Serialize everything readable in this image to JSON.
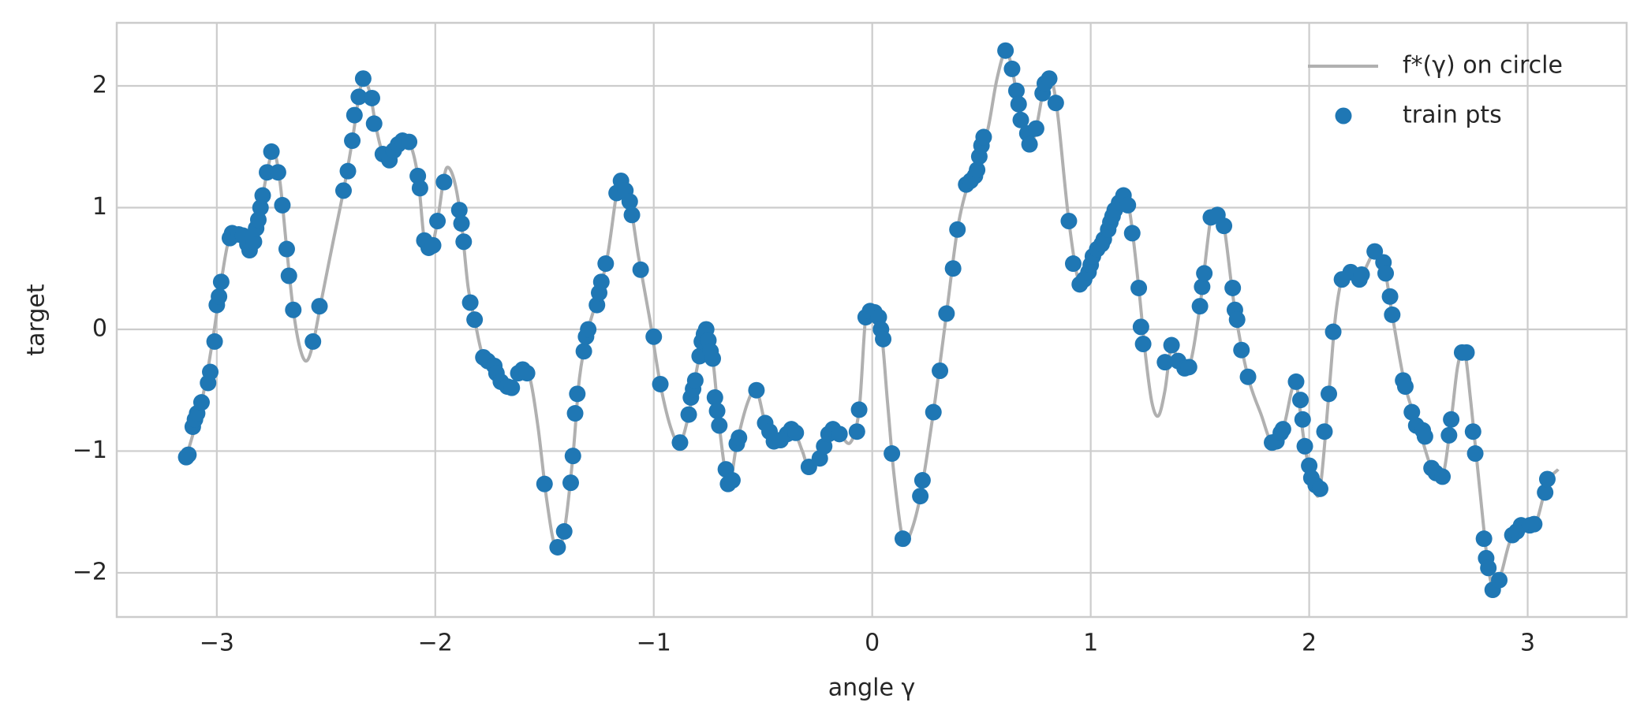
{
  "chart_data": {
    "type": "line",
    "xlabel": "angle γ",
    "ylabel": "target",
    "xlim": [
      -3.458,
      3.453
    ],
    "ylim": [
      -2.363,
      2.518
    ],
    "xticks": [
      {
        "value": -3,
        "label": "−3"
      },
      {
        "value": -2,
        "label": "−2"
      },
      {
        "value": -1,
        "label": "−1"
      },
      0,
      1,
      2,
      3
    ],
    "yticks": [
      {
        "value": -2,
        "label": "−2"
      },
      {
        "value": -1,
        "label": "−1"
      },
      0,
      1,
      2
    ],
    "grid": true,
    "legend": "upper right",
    "series": [
      {
        "name": "f*(γ) on circle",
        "type": "line",
        "color": "#b0b0b0",
        "x": [
          -3.14,
          -3.07,
          -3.02,
          -2.98,
          -2.95,
          -2.92,
          -2.89,
          -2.85,
          -2.81,
          -2.77,
          -2.74,
          -2.71,
          -2.68,
          -2.65,
          -2.62,
          -2.59,
          -2.56,
          -2.52,
          -2.47,
          -2.42,
          -2.38,
          -2.35,
          -2.33,
          -2.3,
          -2.27,
          -2.24,
          -2.21,
          -2.16,
          -2.12,
          -2.08,
          -2.05,
          -2.02,
          -1.99,
          -1.96,
          -1.94,
          -1.91,
          -1.88,
          -1.85,
          -1.82,
          -1.78,
          -1.72,
          -1.66,
          -1.61,
          -1.57,
          -1.53,
          -1.49,
          -1.45,
          -1.41,
          -1.37,
          -1.34,
          -1.3,
          -1.25,
          -1.21,
          -1.17,
          -1.15,
          -1.11,
          -1.07,
          -1.02,
          -0.97,
          -0.92,
          -0.88,
          -0.84,
          -0.8,
          -0.76,
          -0.73,
          -0.7,
          -0.67,
          -0.65,
          -0.62,
          -0.57,
          -0.53,
          -0.49,
          -0.45,
          -0.4,
          -0.36,
          -0.32,
          -0.29,
          -0.24,
          -0.19,
          -0.15,
          -0.1,
          -0.06,
          -0.03,
          0.0,
          0.04,
          0.07,
          0.1,
          0.14,
          0.17,
          0.22,
          0.28,
          0.34,
          0.39,
          0.44,
          0.49,
          0.53,
          0.57,
          0.61,
          0.64,
          0.67,
          0.72,
          0.75,
          0.79,
          0.82,
          0.85,
          0.9,
          0.95,
          1.0,
          1.06,
          1.11,
          1.15,
          1.18,
          1.22,
          1.25,
          1.28,
          1.31,
          1.34,
          1.37,
          1.4,
          1.45,
          1.5,
          1.55,
          1.58,
          1.61,
          1.66,
          1.72,
          1.78,
          1.83,
          1.88,
          1.92,
          1.94,
          1.98,
          2.02,
          2.05,
          2.09,
          2.12,
          2.15,
          2.19,
          2.24,
          2.3,
          2.34,
          2.38,
          2.44,
          2.5,
          2.56,
          2.61,
          2.65,
          2.68,
          2.71,
          2.74,
          2.78,
          2.82,
          2.85,
          2.88,
          2.93,
          3.0,
          3.04,
          3.09,
          3.14
        ],
        "values": [
          -1.05,
          -0.6,
          -0.1,
          0.39,
          0.7,
          0.8,
          0.77,
          0.65,
          0.9,
          1.29,
          1.47,
          1.2,
          0.66,
          0.16,
          -0.15,
          -0.26,
          -0.12,
          0.25,
          0.7,
          1.14,
          1.55,
          1.91,
          2.05,
          1.95,
          1.65,
          1.44,
          1.39,
          1.53,
          1.54,
          1.26,
          0.73,
          0.66,
          0.89,
          1.25,
          1.33,
          1.2,
          0.87,
          0.35,
          0.08,
          -0.23,
          -0.36,
          -0.48,
          -0.33,
          -0.38,
          -0.8,
          -1.4,
          -1.79,
          -1.66,
          -1.04,
          -0.4,
          0.0,
          0.3,
          0.62,
          1.12,
          1.22,
          1.05,
          0.6,
          0.1,
          -0.45,
          -0.82,
          -0.93,
          -0.7,
          -0.3,
          0.0,
          -0.24,
          -0.79,
          -1.2,
          -1.28,
          -0.94,
          -0.6,
          -0.5,
          -0.77,
          -0.92,
          -0.87,
          -0.83,
          -1.0,
          -1.13,
          -1.06,
          -0.83,
          -0.86,
          -0.93,
          -0.66,
          0.1,
          0.17,
          0.0,
          -0.6,
          -1.2,
          -1.73,
          -1.7,
          -1.37,
          -0.68,
          0.13,
          0.82,
          1.2,
          1.42,
          1.65,
          2.05,
          2.29,
          2.14,
          1.85,
          1.52,
          1.65,
          2.02,
          2.05,
          1.75,
          0.89,
          0.37,
          0.53,
          0.74,
          0.98,
          1.1,
          0.95,
          0.34,
          -0.2,
          -0.6,
          -0.71,
          -0.5,
          -0.13,
          -0.26,
          -0.31,
          0.19,
          0.92,
          0.95,
          0.85,
          0.16,
          -0.39,
          -0.7,
          -0.93,
          -0.82,
          -0.5,
          -0.43,
          -0.96,
          -1.28,
          -1.31,
          -0.53,
          0.1,
          0.41,
          0.47,
          0.45,
          0.64,
          0.55,
          0.12,
          -0.47,
          -0.8,
          -1.14,
          -1.21,
          -0.74,
          -0.3,
          -0.17,
          -0.6,
          -1.3,
          -1.96,
          -2.14,
          -2.0,
          -1.69,
          -1.61,
          -1.58,
          -1.26,
          -1.15
        ]
      },
      {
        "name": "train pts",
        "type": "scatter",
        "color": "#1f77b4",
        "x": [
          -3.14,
          -3.13,
          -3.11,
          -3.1,
          -3.09,
          -3.07,
          -3.04,
          -3.03,
          -3.01,
          -3.0,
          -2.99,
          -2.98,
          -2.94,
          -2.93,
          -2.9,
          -2.88,
          -2.86,
          -2.85,
          -2.83,
          -2.82,
          -2.81,
          -2.8,
          -2.79,
          -2.77,
          -2.75,
          -2.72,
          -2.7,
          -2.68,
          -2.67,
          -2.65,
          -2.56,
          -2.53,
          -2.42,
          -2.4,
          -2.38,
          -2.37,
          -2.35,
          -2.33,
          -2.29,
          -2.28,
          -2.24,
          -2.21,
          -2.19,
          -2.17,
          -2.15,
          -2.12,
          -2.08,
          -2.07,
          -2.05,
          -2.03,
          -2.01,
          -1.99,
          -1.96,
          -1.89,
          -1.88,
          -1.87,
          -1.84,
          -1.82,
          -1.78,
          -1.76,
          -1.73,
          -1.72,
          -1.7,
          -1.67,
          -1.65,
          -1.62,
          -1.6,
          -1.58,
          -1.5,
          -1.44,
          -1.41,
          -1.38,
          -1.37,
          -1.36,
          -1.35,
          -1.32,
          -1.31,
          -1.3,
          -1.26,
          -1.25,
          -1.24,
          -1.22,
          -1.17,
          -1.15,
          -1.13,
          -1.11,
          -1.1,
          -1.06,
          -1.0,
          -0.97,
          -0.88,
          -0.84,
          -0.83,
          -0.82,
          -0.81,
          -0.79,
          -0.78,
          -0.77,
          -0.76,
          -0.75,
          -0.74,
          -0.73,
          -0.72,
          -0.71,
          -0.7,
          -0.67,
          -0.66,
          -0.64,
          -0.62,
          -0.61,
          -0.53,
          -0.49,
          -0.47,
          -0.45,
          -0.42,
          -0.39,
          -0.37,
          -0.35,
          -0.29,
          -0.24,
          -0.22,
          -0.2,
          -0.18,
          -0.15,
          -0.07,
          -0.06,
          -0.03,
          -0.01,
          0.01,
          0.03,
          0.04,
          0.05,
          0.09,
          0.14,
          0.22,
          0.23,
          0.28,
          0.31,
          0.34,
          0.37,
          0.39,
          0.43,
          0.45,
          0.47,
          0.48,
          0.49,
          0.5,
          0.51,
          0.61,
          0.64,
          0.66,
          0.67,
          0.68,
          0.71,
          0.72,
          0.75,
          0.78,
          0.79,
          0.81,
          0.84,
          0.9,
          0.92,
          0.95,
          0.97,
          0.99,
          1.0,
          1.01,
          1.03,
          1.05,
          1.06,
          1.08,
          1.09,
          1.1,
          1.11,
          1.13,
          1.15,
          1.17,
          1.19,
          1.22,
          1.23,
          1.24,
          1.34,
          1.37,
          1.4,
          1.43,
          1.45,
          1.5,
          1.51,
          1.52,
          1.55,
          1.58,
          1.61,
          1.65,
          1.66,
          1.67,
          1.69,
          1.72,
          1.83,
          1.85,
          1.87,
          1.88,
          1.94,
          1.96,
          1.97,
          1.98,
          2.0,
          2.01,
          2.03,
          2.05,
          2.07,
          2.09,
          2.11,
          2.15,
          2.19,
          2.23,
          2.24,
          2.3,
          2.34,
          2.35,
          2.37,
          2.38,
          2.43,
          2.44,
          2.47,
          2.49,
          2.52,
          2.53,
          2.56,
          2.58,
          2.61,
          2.64,
          2.65,
          2.7,
          2.72,
          2.75,
          2.76,
          2.8,
          2.81,
          2.82,
          2.84,
          2.87,
          2.93,
          2.95,
          2.97,
          3.01,
          3.03,
          3.08,
          3.09
        ],
        "values": [
          -1.05,
          -1.03,
          -0.8,
          -0.74,
          -0.69,
          -0.6,
          -0.44,
          -0.35,
          -0.1,
          0.2,
          0.27,
          0.39,
          0.75,
          0.79,
          0.78,
          0.77,
          0.7,
          0.65,
          0.72,
          0.83,
          0.9,
          1.0,
          1.1,
          1.29,
          1.46,
          1.29,
          1.02,
          0.66,
          0.44,
          0.16,
          -0.1,
          0.19,
          1.14,
          1.3,
          1.55,
          1.76,
          1.91,
          2.06,
          1.9,
          1.69,
          1.44,
          1.39,
          1.47,
          1.52,
          1.55,
          1.54,
          1.26,
          1.16,
          0.73,
          0.67,
          0.69,
          0.89,
          1.21,
          0.98,
          0.87,
          0.72,
          0.22,
          0.08,
          -0.23,
          -0.26,
          -0.3,
          -0.36,
          -0.43,
          -0.47,
          -0.48,
          -0.36,
          -0.33,
          -0.36,
          -1.27,
          -1.79,
          -1.66,
          -1.26,
          -1.04,
          -0.69,
          -0.53,
          -0.18,
          -0.06,
          0.0,
          0.2,
          0.3,
          0.39,
          0.54,
          1.12,
          1.22,
          1.14,
          1.05,
          0.94,
          0.49,
          -0.06,
          -0.45,
          -0.93,
          -0.7,
          -0.56,
          -0.49,
          -0.42,
          -0.22,
          -0.1,
          -0.04,
          0.0,
          -0.09,
          -0.18,
          -0.24,
          -0.56,
          -0.67,
          -0.79,
          -1.15,
          -1.27,
          -1.24,
          -0.94,
          -0.89,
          -0.5,
          -0.77,
          -0.84,
          -0.92,
          -0.91,
          -0.86,
          -0.82,
          -0.85,
          -1.13,
          -1.06,
          -0.96,
          -0.86,
          -0.82,
          -0.86,
          -0.84,
          -0.66,
          0.1,
          0.15,
          0.14,
          0.1,
          0.0,
          -0.08,
          -1.02,
          -1.72,
          -1.37,
          -1.24,
          -0.68,
          -0.34,
          0.13,
          0.5,
          0.82,
          1.19,
          1.22,
          1.26,
          1.31,
          1.42,
          1.51,
          1.58,
          2.29,
          2.14,
          1.96,
          1.85,
          1.72,
          1.61,
          1.52,
          1.65,
          1.94,
          2.02,
          2.06,
          1.86,
          0.89,
          0.54,
          0.37,
          0.41,
          0.47,
          0.53,
          0.6,
          0.66,
          0.7,
          0.74,
          0.82,
          0.88,
          0.93,
          0.98,
          1.04,
          1.1,
          1.02,
          0.79,
          0.34,
          0.02,
          -0.12,
          -0.27,
          -0.13,
          -0.26,
          -0.32,
          -0.31,
          0.19,
          0.35,
          0.46,
          0.92,
          0.94,
          0.85,
          0.34,
          0.16,
          0.08,
          -0.17,
          -0.39,
          -0.93,
          -0.92,
          -0.85,
          -0.82,
          -0.43,
          -0.58,
          -0.74,
          -0.96,
          -1.12,
          -1.22,
          -1.28,
          -1.31,
          -0.84,
          -0.53,
          -0.02,
          0.41,
          0.47,
          0.41,
          0.45,
          0.64,
          0.55,
          0.46,
          0.27,
          0.12,
          -0.42,
          -0.47,
          -0.68,
          -0.79,
          -0.83,
          -0.88,
          -1.14,
          -1.18,
          -1.21,
          -0.87,
          -0.74,
          -0.19,
          -0.19,
          -0.84,
          -1.02,
          -1.72,
          -1.88,
          -1.96,
          -2.14,
          -2.06,
          -1.69,
          -1.66,
          -1.61,
          -1.61,
          -1.6,
          -1.34,
          -1.23
        ]
      }
    ]
  }
}
